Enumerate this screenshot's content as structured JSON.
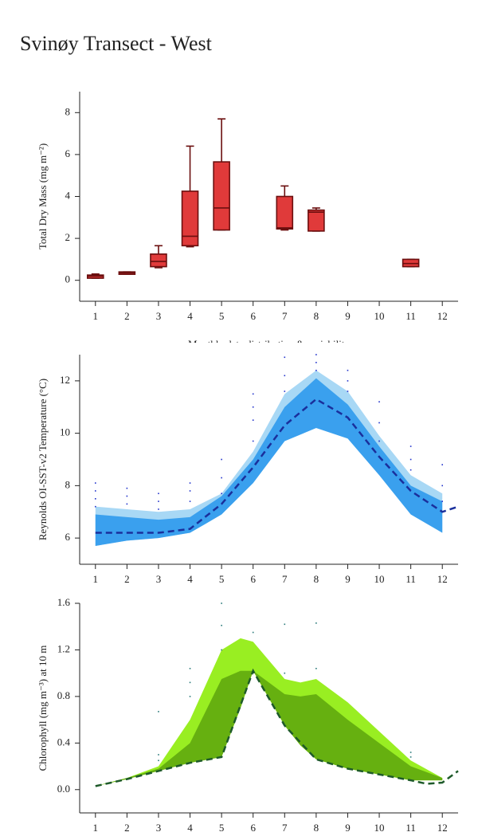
{
  "title": "Svinøy Transect - West",
  "chart_data": [
    {
      "type": "box",
      "ylabel": "Total Dry Mass (mg m⁻²)",
      "xlabel": "Monthly data distribution & variability",
      "xlim": [
        0.5,
        12.5
      ],
      "xticks": [
        1,
        2,
        3,
        4,
        5,
        6,
        7,
        8,
        9,
        10,
        11,
        12
      ],
      "ylim": [
        -1,
        9
      ],
      "yticks": [
        0,
        2,
        4,
        6,
        8
      ],
      "color": "#e03a3a",
      "edge_color": "#6b0f0f",
      "x": [
        1,
        2,
        3,
        4,
        5,
        7,
        8,
        11
      ],
      "min": [
        0.1,
        0.3,
        0.6,
        1.6,
        2.4,
        2.4,
        2.35,
        0.65
      ],
      "q1": [
        0.1,
        0.3,
        0.65,
        1.65,
        2.4,
        2.45,
        2.35,
        0.65
      ],
      "median": [
        0.2,
        0.35,
        0.9,
        2.1,
        3.45,
        2.5,
        3.25,
        0.8
      ],
      "q3": [
        0.25,
        0.4,
        1.25,
        4.25,
        5.65,
        4.0,
        3.35,
        1.0
      ],
      "max": [
        0.3,
        0.4,
        1.65,
        6.4,
        7.7,
        4.5,
        3.45,
        1.0
      ]
    },
    {
      "type": "area",
      "ylabel": "Reynolds OI-SST-v2 Temperature (°C)",
      "xlim": [
        0.5,
        12.5
      ],
      "xticks": [
        1,
        2,
        3,
        4,
        5,
        6,
        7,
        8,
        9,
        10,
        11,
        12
      ],
      "ylim": [
        5,
        13
      ],
      "yticks": [
        6,
        8,
        10,
        12
      ],
      "x": [
        1,
        2,
        3,
        4,
        5,
        6,
        7,
        8,
        9,
        10,
        11,
        12
      ],
      "bands": [
        {
          "color": "#a8d8f5",
          "upper": [
            7.2,
            7.1,
            7.0,
            7.1,
            7.7,
            9.3,
            11.5,
            12.4,
            11.6,
            9.9,
            8.4,
            7.7
          ],
          "lower": [
            5.7,
            5.9,
            6.0,
            6.2,
            6.9,
            8.1,
            9.7,
            10.2,
            9.8,
            8.4,
            6.9,
            6.2
          ]
        },
        {
          "color": "#3aa0ee",
          "upper": [
            6.9,
            6.8,
            6.7,
            6.8,
            7.6,
            9.0,
            11.0,
            12.1,
            11.1,
            9.5,
            8.0,
            7.4
          ],
          "lower": [
            5.7,
            5.9,
            6.0,
            6.2,
            6.9,
            8.1,
            9.7,
            10.2,
            9.8,
            8.4,
            6.9,
            6.2
          ]
        }
      ],
      "dots": {
        "color": "#2233cc",
        "x": [
          1,
          1,
          1,
          1,
          2,
          2,
          2,
          3,
          3,
          3,
          4,
          4,
          4,
          5,
          5,
          5,
          6,
          6,
          6,
          6,
          7,
          7,
          7,
          8,
          8,
          8,
          9,
          9,
          9,
          10,
          10,
          10,
          11,
          11,
          11,
          12,
          12,
          12
        ],
        "y": [
          7.2,
          7.5,
          7.8,
          8.1,
          7.3,
          7.6,
          7.9,
          7.1,
          7.4,
          7.7,
          7.4,
          7.8,
          8.1,
          7.7,
          8.3,
          9.0,
          9.7,
          10.5,
          11.0,
          11.5,
          11.6,
          12.2,
          12.9,
          12.4,
          12.7,
          13.0,
          11.6,
          12.0,
          12.4,
          9.7,
          10.4,
          11.2,
          8.6,
          9.0,
          9.5,
          7.4,
          8.0,
          8.8
        ]
      },
      "lines": [
        {
          "color": "#1a2f9c",
          "x": [
            1,
            2,
            3,
            4,
            5,
            6,
            7,
            8,
            9,
            10,
            11,
            12,
            12.5
          ],
          "values": [
            6.2,
            6.2,
            6.2,
            6.35,
            7.3,
            8.7,
            10.3,
            11.3,
            10.6,
            9.1,
            7.8,
            7.0,
            7.2
          ]
        }
      ]
    },
    {
      "type": "area",
      "ylabel": "Chlorophyll (mg m⁻³) at 10 m",
      "xlim": [
        0.5,
        12.5
      ],
      "xticks": [
        1,
        2,
        3,
        4,
        5,
        6,
        7,
        8,
        9,
        10,
        11,
        12
      ],
      "ylim": [
        -0.2,
        1.6
      ],
      "yticks": [
        {
          "value": 0,
          "label": "0.0"
        },
        0.4,
        0.8,
        1.2,
        1.6
      ],
      "x": [
        1,
        2,
        3,
        4,
        5,
        5.6,
        6,
        7,
        7.5,
        8,
        9,
        10,
        11,
        12
      ],
      "bands": [
        {
          "color": "#99ee22",
          "upper": [
            0.03,
            0.1,
            0.2,
            0.6,
            1.2,
            1.3,
            1.27,
            0.95,
            0.92,
            0.95,
            0.75,
            0.5,
            0.25,
            0.1
          ],
          "lower": [
            0.03,
            0.09,
            0.16,
            0.23,
            0.28,
            0.7,
            1.02,
            0.55,
            0.38,
            0.26,
            0.18,
            0.13,
            0.08,
            0.08
          ]
        },
        {
          "color": "#66b010",
          "upper": [
            0.03,
            0.1,
            0.18,
            0.4,
            0.95,
            1.02,
            1.02,
            0.82,
            0.8,
            0.82,
            0.6,
            0.4,
            0.2,
            0.1
          ],
          "lower": [
            0.03,
            0.09,
            0.16,
            0.23,
            0.28,
            0.7,
            1.02,
            0.55,
            0.38,
            0.26,
            0.18,
            0.13,
            0.08,
            0.08
          ]
        }
      ],
      "dots": {
        "color": "#2a7a7a",
        "x": [
          3,
          3,
          3,
          4,
          4,
          4,
          5,
          5,
          5,
          6,
          7,
          7,
          8,
          8,
          11,
          11
        ],
        "y": [
          0.67,
          0.3,
          0.25,
          1.04,
          0.92,
          0.8,
          1.6,
          1.41,
          1.2,
          1.35,
          1.42,
          1.0,
          1.43,
          1.04,
          0.32,
          0.28
        ]
      },
      "lines": [
        {
          "color": "#1e5a2a",
          "x": [
            1,
            2,
            3,
            4,
            5,
            6,
            7,
            8,
            9,
            10,
            11,
            11.5,
            12,
            12.5
          ],
          "values": [
            0.03,
            0.09,
            0.16,
            0.23,
            0.28,
            1.02,
            0.55,
            0.26,
            0.18,
            0.13,
            0.08,
            0.05,
            0.06,
            0.16
          ]
        }
      ]
    }
  ]
}
